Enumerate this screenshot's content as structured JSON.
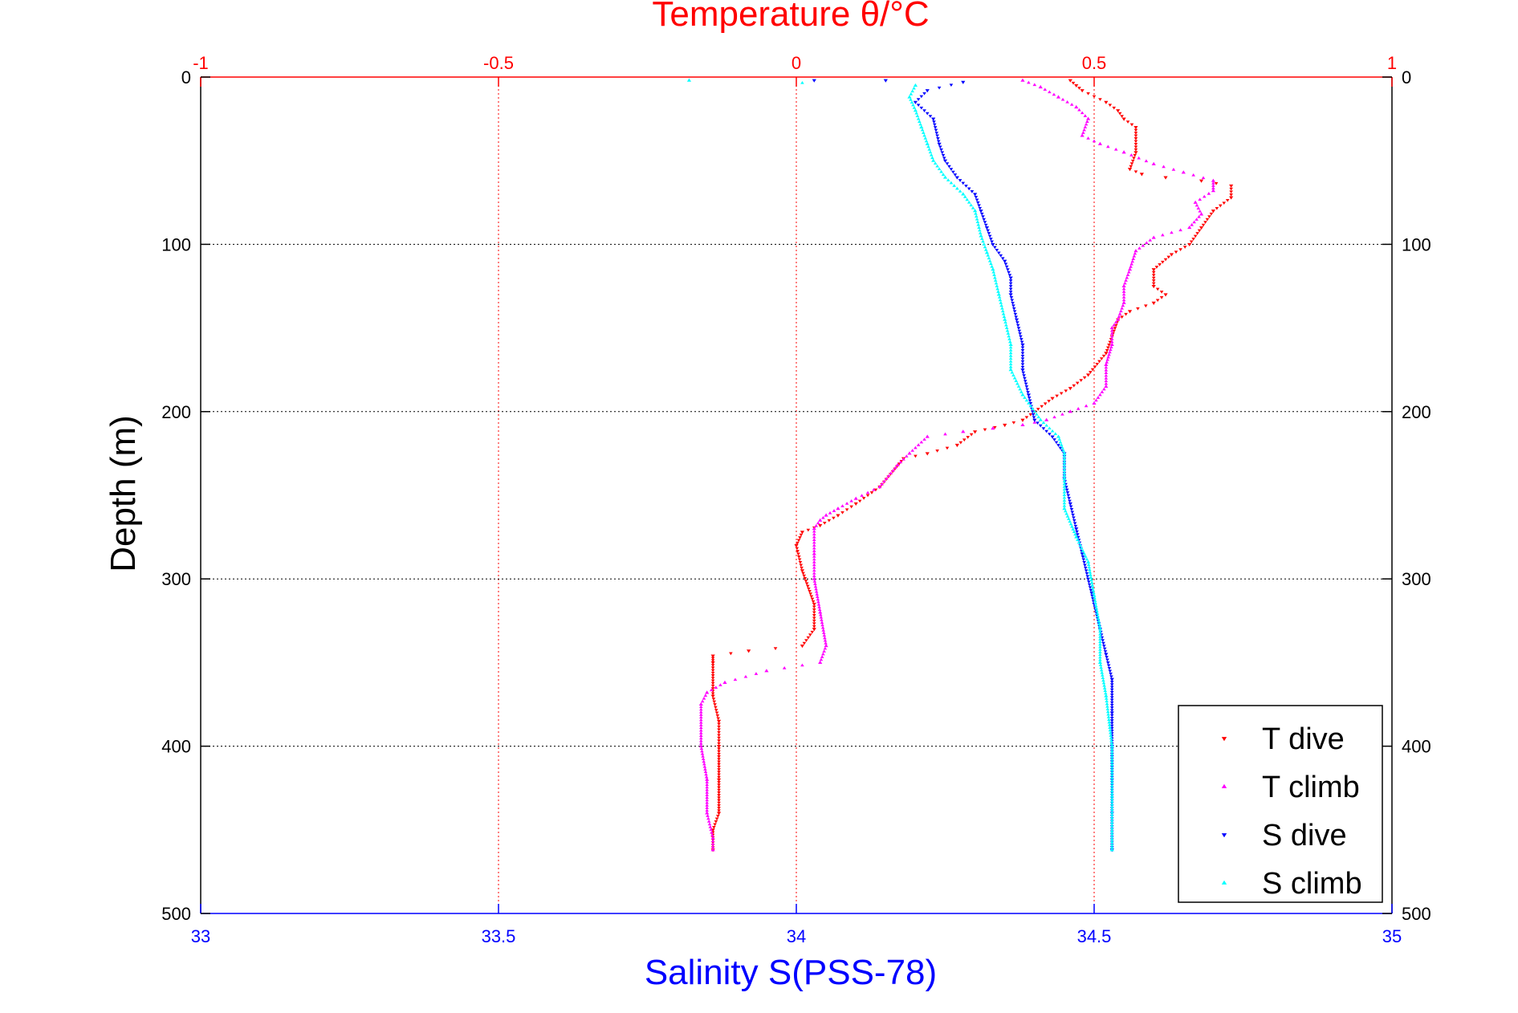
{
  "chart_data": {
    "type": "scatter",
    "title": "Temperature θ/°C",
    "xlabel": "Salinity S(PSS-78)",
    "ylabel": "Depth (m)",
    "top_axis": {
      "label": "Temperature θ/°C",
      "range": [
        -1,
        1
      ],
      "ticks": [
        -1,
        -0.5,
        0,
        0.5,
        1
      ],
      "tick_labels": [
        "-1",
        "-0.5",
        "0",
        "0.5",
        "1"
      ],
      "color": "#ff0000"
    },
    "bottom_axis": {
      "label": "Salinity S(PSS-78)",
      "range": [
        33,
        35
      ],
      "ticks": [
        33,
        33.5,
        34,
        34.5,
        35
      ],
      "tick_labels": [
        "33",
        "33.5",
        "34",
        "34.5",
        "35"
      ],
      "color": "#0000ff"
    },
    "y_axis": {
      "label": "Depth (m)",
      "range": [
        0,
        500
      ],
      "reversed": true,
      "ticks": [
        0,
        100,
        200,
        300,
        400,
        500
      ],
      "tick_labels": [
        "0",
        "100",
        "200",
        "300",
        "400",
        "500"
      ]
    },
    "grid": true,
    "legend_position": "bottom-right",
    "series": [
      {
        "name": "T dive",
        "axis": "top",
        "color": "#ff0000",
        "marker": "triangle-down",
        "points": [
          [
            0.46,
            2
          ],
          [
            0.47,
            5
          ],
          [
            0.48,
            8
          ],
          [
            0.52,
            15
          ],
          [
            0.54,
            20
          ],
          [
            0.55,
            25
          ],
          [
            0.57,
            30
          ],
          [
            0.57,
            45
          ],
          [
            0.56,
            55
          ],
          [
            0.58,
            58
          ],
          [
            0.62,
            60
          ],
          [
            0.68,
            62
          ],
          [
            0.73,
            65
          ],
          [
            0.73,
            72
          ],
          [
            0.7,
            80
          ],
          [
            0.68,
            90
          ],
          [
            0.66,
            100
          ],
          [
            0.63,
            106
          ],
          [
            0.6,
            115
          ],
          [
            0.6,
            125
          ],
          [
            0.62,
            130
          ],
          [
            0.6,
            135
          ],
          [
            0.56,
            140
          ],
          [
            0.54,
            145
          ],
          [
            0.53,
            155
          ],
          [
            0.52,
            165
          ],
          [
            0.49,
            178
          ],
          [
            0.46,
            186
          ],
          [
            0.43,
            192
          ],
          [
            0.4,
            200
          ],
          [
            0.38,
            205
          ],
          [
            0.35,
            208
          ],
          [
            0.3,
            212
          ],
          [
            0.27,
            220
          ],
          [
            0.22,
            225
          ],
          [
            0.18,
            228
          ],
          [
            0.14,
            245
          ],
          [
            0.1,
            255
          ],
          [
            0.07,
            262
          ],
          [
            0.04,
            268
          ],
          [
            0.01,
            272
          ],
          [
            0.0,
            280
          ],
          [
            0.01,
            295
          ],
          [
            0.03,
            315
          ],
          [
            0.03,
            330
          ],
          [
            0.01,
            340
          ],
          [
            -0.08,
            343
          ],
          [
            -0.14,
            346
          ],
          [
            -0.14,
            350
          ],
          [
            -0.14,
            370
          ],
          [
            -0.13,
            385
          ],
          [
            -0.13,
            400
          ],
          [
            -0.13,
            420
          ],
          [
            -0.13,
            440
          ],
          [
            -0.14,
            450
          ],
          [
            -0.14,
            462
          ]
        ]
      },
      {
        "name": "T climb",
        "axis": "top",
        "color": "#ff00ff",
        "marker": "triangle-up",
        "points": [
          [
            0.38,
            2
          ],
          [
            0.41,
            6
          ],
          [
            0.44,
            12
          ],
          [
            0.47,
            18
          ],
          [
            0.49,
            25
          ],
          [
            0.48,
            35
          ],
          [
            0.51,
            40
          ],
          [
            0.55,
            45
          ],
          [
            0.6,
            52
          ],
          [
            0.65,
            57
          ],
          [
            0.7,
            62
          ],
          [
            0.7,
            68
          ],
          [
            0.67,
            75
          ],
          [
            0.68,
            82
          ],
          [
            0.66,
            90
          ],
          [
            0.6,
            96
          ],
          [
            0.57,
            104
          ],
          [
            0.56,
            115
          ],
          [
            0.55,
            125
          ],
          [
            0.55,
            135
          ],
          [
            0.54,
            145
          ],
          [
            0.53,
            150
          ],
          [
            0.53,
            160
          ],
          [
            0.52,
            172
          ],
          [
            0.52,
            185
          ],
          [
            0.5,
            195
          ],
          [
            0.46,
            200
          ],
          [
            0.42,
            205
          ],
          [
            0.38,
            208
          ],
          [
            0.33,
            210
          ],
          [
            0.28,
            212
          ],
          [
            0.22,
            215
          ],
          [
            0.19,
            225
          ],
          [
            0.17,
            232
          ],
          [
            0.14,
            245
          ],
          [
            0.1,
            252
          ],
          [
            0.07,
            258
          ],
          [
            0.05,
            262
          ],
          [
            0.04,
            265
          ],
          [
            0.03,
            270
          ],
          [
            0.03,
            285
          ],
          [
            0.03,
            300
          ],
          [
            0.04,
            320
          ],
          [
            0.05,
            340
          ],
          [
            0.04,
            350
          ],
          [
            -0.05,
            355
          ],
          [
            -0.12,
            362
          ],
          [
            -0.15,
            368
          ],
          [
            -0.16,
            375
          ],
          [
            -0.16,
            400
          ],
          [
            -0.15,
            420
          ],
          [
            -0.15,
            440
          ],
          [
            -0.14,
            455
          ],
          [
            -0.14,
            462
          ]
        ]
      },
      {
        "name": "S dive",
        "axis": "bottom",
        "color": "#0000ff",
        "marker": "triangle-down",
        "points": [
          [
            34.03,
            2
          ],
          [
            34.15,
            2
          ],
          [
            34.28,
            3
          ],
          [
            34.22,
            8
          ],
          [
            34.2,
            15
          ],
          [
            34.23,
            25
          ],
          [
            34.24,
            40
          ],
          [
            34.25,
            50
          ],
          [
            34.27,
            60
          ],
          [
            34.3,
            70
          ],
          [
            34.31,
            80
          ],
          [
            34.32,
            90
          ],
          [
            34.33,
            100
          ],
          [
            34.35,
            110
          ],
          [
            34.36,
            120
          ],
          [
            34.36,
            130
          ],
          [
            34.37,
            145
          ],
          [
            34.38,
            160
          ],
          [
            34.38,
            175
          ],
          [
            34.39,
            190
          ],
          [
            34.4,
            205
          ],
          [
            34.43,
            215
          ],
          [
            34.45,
            225
          ],
          [
            34.45,
            240
          ],
          [
            34.46,
            255
          ],
          [
            34.47,
            270
          ],
          [
            34.48,
            285
          ],
          [
            34.49,
            300
          ],
          [
            34.5,
            315
          ],
          [
            34.51,
            330
          ],
          [
            34.52,
            345
          ],
          [
            34.53,
            360
          ],
          [
            34.53,
            380
          ],
          [
            34.53,
            400
          ],
          [
            34.53,
            420
          ],
          [
            34.53,
            440
          ],
          [
            34.53,
            462
          ]
        ]
      },
      {
        "name": "S climb",
        "axis": "bottom",
        "color": "#00ffff",
        "marker": "triangle-up",
        "points": [
          [
            33.82,
            2
          ],
          [
            34.2,
            5
          ],
          [
            34.19,
            12
          ],
          [
            34.2,
            20
          ],
          [
            34.21,
            30
          ],
          [
            34.22,
            40
          ],
          [
            34.23,
            50
          ],
          [
            34.25,
            60
          ],
          [
            34.28,
            70
          ],
          [
            34.3,
            80
          ],
          [
            34.31,
            95
          ],
          [
            34.32,
            105
          ],
          [
            34.33,
            115
          ],
          [
            34.34,
            130
          ],
          [
            34.35,
            145
          ],
          [
            34.36,
            160
          ],
          [
            34.36,
            175
          ],
          [
            34.38,
            190
          ],
          [
            34.41,
            205
          ],
          [
            34.44,
            215
          ],
          [
            34.45,
            225
          ],
          [
            34.45,
            240
          ],
          [
            34.45,
            258
          ],
          [
            34.47,
            275
          ],
          [
            34.49,
            290
          ],
          [
            34.5,
            310
          ],
          [
            34.51,
            330
          ],
          [
            34.51,
            350
          ],
          [
            34.52,
            370
          ],
          [
            34.53,
            400
          ],
          [
            34.53,
            430
          ],
          [
            34.53,
            462
          ]
        ]
      }
    ]
  }
}
